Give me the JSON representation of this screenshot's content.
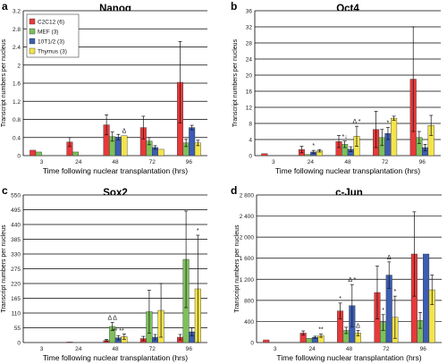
{
  "figure": {
    "shared_ylabel": "Transcript numbers per nucleus",
    "shared_xlabel": "Time following nuclear transplantation (hrs)"
  },
  "series_colors": [
    "#e8393a",
    "#7cc15a",
    "#3c5db3",
    "#f4e44a"
  ],
  "chart_data": [
    {
      "panel": "a",
      "type": "bar",
      "title": "Nanog",
      "xlabel": "Time following nuclear transplantation (hrs)",
      "ylabel": "Transcript numbers per nucleus",
      "categories": [
        "3",
        "24",
        "48",
        "72",
        "96"
      ],
      "ylim": [
        0,
        3.2
      ],
      "yticks": [
        "0",
        "0.4",
        "0.8",
        "1.2",
        "1.6",
        "2",
        "2.4",
        "2.8",
        "3.2"
      ],
      "legend": "top-left",
      "legend_labels": [
        "C2C12 (6)",
        "MEF (3)",
        "10T1/2 (3)",
        "Thymus (3)"
      ],
      "grid": true,
      "series": [
        {
          "name": "C2C12 (6)",
          "values": [
            0.12,
            0.3,
            0.68,
            0.62,
            1.62
          ],
          "errors": [
            0,
            0.1,
            0.22,
            0.25,
            0.9
          ]
        },
        {
          "name": "MEF (3)",
          "values": [
            0.08,
            0.08,
            0.42,
            0.32,
            0.28
          ],
          "errors": [
            0,
            0,
            0.1,
            0.08,
            0.08
          ]
        },
        {
          "name": "10T1/2 (3)",
          "values": [
            null,
            null,
            0.41,
            0.18,
            0.62
          ],
          "errors": [
            0,
            0,
            0.06,
            0.04,
            0.05
          ]
        },
        {
          "name": "Thymus (3)",
          "values": [
            null,
            null,
            0.44,
            0.14,
            0.28
          ],
          "errors": [
            0,
            0,
            0,
            0,
            0.06
          ]
        }
      ],
      "annotations": [
        {
          "text": "Δ",
          "category": 2,
          "series": 3
        }
      ]
    },
    {
      "panel": "b",
      "type": "bar",
      "title": "Oct4",
      "xlabel": "Time following nuclear transplantation (hrs)",
      "ylabel": "Transcript numbers per nucleus",
      "categories": [
        "3",
        "24",
        "48",
        "72",
        "96"
      ],
      "ylim": [
        0,
        36
      ],
      "yticks": [
        "0",
        "4",
        "8",
        "12",
        "16",
        "20",
        "24",
        "28",
        "32",
        "36"
      ],
      "grid": true,
      "series": [
        {
          "name": "C2C12 (6)",
          "values": [
            0.5,
            1.5,
            3.5,
            6.5,
            19
          ],
          "errors": [
            0,
            0.8,
            1.5,
            4.5,
            13
          ]
        },
        {
          "name": "MEF (3)",
          "values": [
            null,
            0.3,
            2.8,
            4.5,
            4.5
          ],
          "errors": [
            0,
            0,
            0.8,
            2,
            1.5
          ]
        },
        {
          "name": "10T1/2 (3)",
          "values": [
            null,
            0.9,
            1.6,
            5.5,
            2
          ],
          "errors": [
            0,
            0.4,
            0.6,
            1.5,
            0.8
          ]
        },
        {
          "name": "Thymus (3)",
          "values": [
            null,
            1.2,
            4.8,
            9.3,
            7.5
          ],
          "errors": [
            0,
            0.3,
            2.5,
            0.5,
            2.5
          ]
        }
      ],
      "annotations": [
        {
          "text": "*",
          "category": 1,
          "series": 2
        },
        {
          "text": "*↓",
          "category": 2,
          "series": 1
        },
        {
          "text": "Δ *",
          "category": 2,
          "series": 3
        },
        {
          "text": "*",
          "category": 3,
          "series": 2
        }
      ]
    },
    {
      "panel": "c",
      "type": "bar",
      "title": "Sox2",
      "xlabel": "Time following nuclear transplantation (hrs)",
      "ylabel": "Transcript numbers per nucleus",
      "categories": [
        "3",
        "24",
        "48",
        "72",
        "96"
      ],
      "ylim": [
        0,
        550
      ],
      "yticks": [
        "0",
        "55",
        "110",
        "165",
        "220",
        "275",
        "330",
        "385",
        "440",
        "495",
        "550"
      ],
      "grid": true,
      "series": [
        {
          "name": "C2C12 (6)",
          "values": [
            null,
            2,
            8,
            15,
            20
          ],
          "errors": [
            0,
            0,
            4,
            8,
            10
          ]
        },
        {
          "name": "MEF (3)",
          "values": [
            null,
            null,
            60,
            115,
            310
          ],
          "errors": [
            0,
            0,
            15,
            80,
            180
          ]
        },
        {
          "name": "10T1/2 (3)",
          "values": [
            null,
            null,
            18,
            20,
            40
          ],
          "errors": [
            0,
            0,
            8,
            10,
            15
          ]
        },
        {
          "name": "Thymus (3)",
          "values": [
            null,
            null,
            22,
            120,
            200
          ],
          "errors": [
            0,
            0,
            10,
            100,
            200
          ]
        }
      ],
      "annotations": [
        {
          "text": "Δ Δ",
          "category": 2,
          "series": 1
        },
        {
          "text": "** **",
          "category": 2,
          "series": 2
        },
        {
          "text": "*",
          "category": 4,
          "series": 3
        }
      ]
    },
    {
      "panel": "d",
      "type": "bar",
      "title": "c-Jun",
      "xlabel": "Time following nuclear transplantation (hrs)",
      "ylabel": "Transcript numbers per nucleus",
      "categories": [
        "3",
        "24",
        "48",
        "72",
        "96"
      ],
      "ylim": [
        0,
        2800
      ],
      "yticks": [
        "0",
        "400",
        "800",
        "1 200",
        "1 600",
        "2 000",
        "2 400",
        "2 800"
      ],
      "grid": true,
      "series": [
        {
          "name": "C2C12 (6)",
          "values": [
            50,
            180,
            600,
            950,
            1680
          ],
          "errors": [
            0,
            40,
            150,
            500,
            800
          ]
        },
        {
          "name": "MEF (3)",
          "values": [
            null,
            80,
            230,
            380,
            420
          ],
          "errors": [
            0,
            0,
            60,
            150,
            150
          ]
        },
        {
          "name": "10T1/2 (3)",
          "values": [
            null,
            100,
            700,
            1280,
            1680
          ],
          "errors": [
            0,
            20,
            400,
            250,
            0
          ]
        },
        {
          "name": "Thymus (3)",
          "values": [
            null,
            130,
            180,
            480,
            1000
          ],
          "errors": [
            0,
            30,
            50,
            400,
            280
          ]
        }
      ],
      "annotations": [
        {
          "text": "**",
          "category": 1,
          "series": 3
        },
        {
          "text": "*",
          "category": 2,
          "series": 0
        },
        {
          "text": "Δ *",
          "category": 2,
          "series": 2
        },
        {
          "text": "Δ",
          "category": 2,
          "series": 3
        },
        {
          "text": "*",
          "category": 3,
          "series": 1
        },
        {
          "text": "Δ",
          "category": 3,
          "series": 2
        },
        {
          "text": "*",
          "category": 3,
          "series": 3
        }
      ]
    }
  ],
  "panel_letters": [
    "a",
    "b",
    "c",
    "d"
  ]
}
